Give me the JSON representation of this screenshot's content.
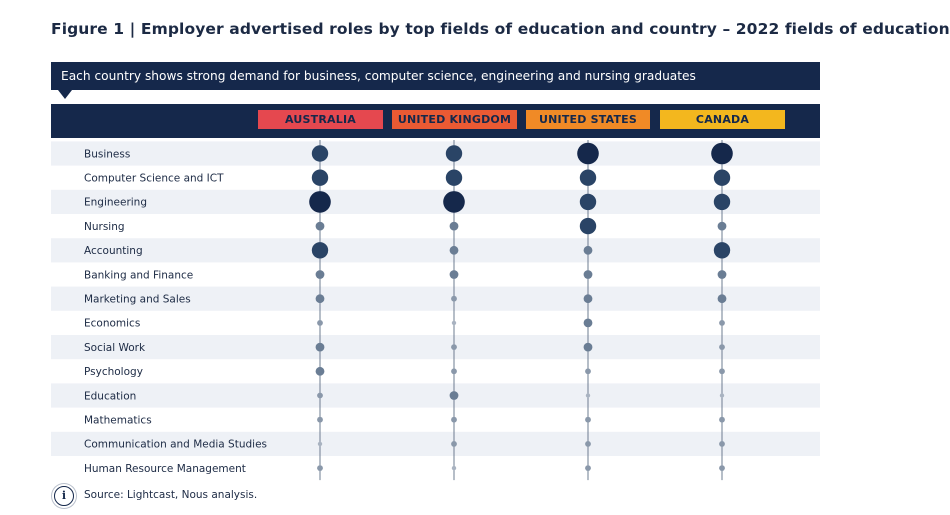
{
  "figure": {
    "title": "Figure 1 | Employer advertised roles by top fields of education and country – 2022 fields of education",
    "banner": "Each country shows strong demand for business, computer science, engineering and nursing graduates",
    "source": "Source: Lightcast, Nous analysis.",
    "info_icon": "info-icon"
  },
  "colors": {
    "navy": "#15284b",
    "row_band": "#eef1f6",
    "size_5": "#15284b",
    "size_4": "#2a4466",
    "size_3": "#3f5775",
    "size_2": "#6a7d94",
    "size_1": "#8a98aa",
    "size_0": "#a9b3c1"
  },
  "chart_data": {
    "type": "dot-matrix",
    "value_scale": "relative demand level (0 = smallest dot, 5 = largest dot)",
    "columns": [
      {
        "name": "AUSTRALIA",
        "bg": "#e5484f",
        "fg": "#15284b"
      },
      {
        "name": "UNITED KINGDOM",
        "bg": "#ea5a33",
        "fg": "#15284b"
      },
      {
        "name": "UNITED STATES",
        "bg": "#f08a26",
        "fg": "#15284b"
      },
      {
        "name": "CANADA",
        "bg": "#f3b71e",
        "fg": "#15284b"
      }
    ],
    "rows": [
      {
        "label": "Business",
        "values": [
          4,
          4,
          5,
          5
        ]
      },
      {
        "label": "Computer Science and ICT",
        "values": [
          4,
          4,
          4,
          4
        ]
      },
      {
        "label": "Engineering",
        "values": [
          5,
          5,
          4,
          4
        ]
      },
      {
        "label": "Nursing",
        "values": [
          2,
          2,
          4,
          2
        ]
      },
      {
        "label": "Accounting",
        "values": [
          4,
          2,
          2,
          4
        ]
      },
      {
        "label": "Banking and Finance",
        "values": [
          2,
          2,
          2,
          2
        ]
      },
      {
        "label": "Marketing and Sales",
        "values": [
          2,
          1,
          2,
          2
        ]
      },
      {
        "label": "Economics",
        "values": [
          1,
          0,
          2,
          1
        ]
      },
      {
        "label": "Social Work",
        "values": [
          2,
          1,
          2,
          1
        ]
      },
      {
        "label": "Psychology",
        "values": [
          2,
          1,
          1,
          1
        ]
      },
      {
        "label": "Education",
        "values": [
          1,
          2,
          0,
          0
        ]
      },
      {
        "label": "Mathematics",
        "values": [
          1,
          1,
          1,
          1
        ]
      },
      {
        "label": "Communication and Media Studies",
        "values": [
          0,
          1,
          1,
          1
        ]
      },
      {
        "label": "Human Resource Management",
        "values": [
          1,
          0,
          1,
          1
        ]
      }
    ]
  }
}
